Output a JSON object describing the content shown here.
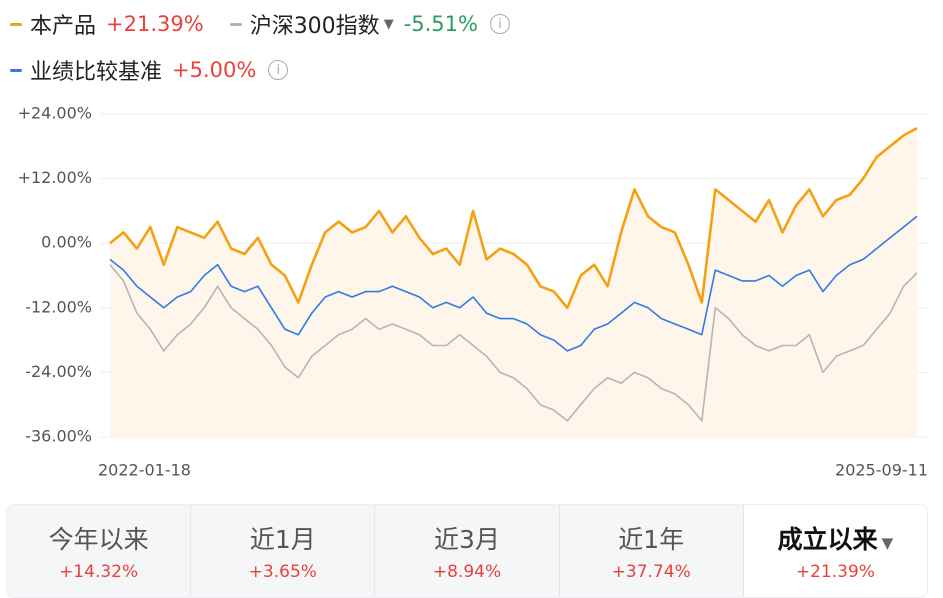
{
  "chart_data": {
    "type": "line",
    "categories": [
      "2022-01-18",
      null,
      null,
      null,
      null,
      null,
      null,
      null,
      null,
      null,
      null,
      null,
      null,
      null,
      null,
      null,
      null,
      null,
      null,
      null,
      null,
      null,
      null,
      null,
      null,
      null,
      null,
      null,
      null,
      null,
      null,
      null,
      null,
      null,
      null,
      null,
      null,
      null,
      null,
      null,
      null,
      null,
      null,
      null,
      null,
      null,
      null,
      null,
      null,
      null,
      null,
      null,
      null,
      null,
      null,
      null,
      null,
      null,
      null,
      null,
      "2025-09-11"
    ],
    "series": [
      {
        "name": "本产品",
        "color": "#f5a012",
        "legend_value": "+21.39%",
        "values": [
          0,
          2,
          -1,
          3,
          -4,
          3,
          2,
          1,
          4,
          -1,
          -2,
          1,
          -4,
          -6,
          -11,
          -4,
          2,
          4,
          2,
          3,
          6,
          2,
          5,
          1,
          -2,
          -1,
          -4,
          6,
          -3,
          -1,
          -2,
          -4,
          -8,
          -9,
          -12,
          -6,
          -4,
          -8,
          2,
          10,
          5,
          3,
          2,
          -4,
          -11,
          10,
          8,
          6,
          4,
          8,
          2,
          7,
          10,
          5,
          8,
          9,
          12,
          16,
          18,
          20,
          21.39
        ]
      },
      {
        "name": "沪深300指数",
        "color": "#b5b5b8",
        "legend_value": "-5.51%",
        "values": [
          -4,
          -7,
          -13,
          -16,
          -20,
          -17,
          -15,
          -12,
          -8,
          -12,
          -14,
          -16,
          -19,
          -23,
          -25,
          -21,
          -19,
          -17,
          -16,
          -14,
          -16,
          -15,
          -16,
          -17,
          -19,
          -19,
          -17,
          -19,
          -21,
          -24,
          -25,
          -27,
          -30,
          -31,
          -33,
          -30,
          -27,
          -25,
          -26,
          -24,
          -25,
          -27,
          -28,
          -30,
          -33,
          -12,
          -14,
          -17,
          -19,
          -20,
          -19,
          -19,
          -17,
          -24,
          -21,
          -20,
          -19,
          -16,
          -13,
          -8,
          -5.51
        ]
      },
      {
        "name": "业绩比较基准",
        "color": "#2f7be8",
        "legend_value": "+5.00%",
        "values": [
          -3,
          -5,
          -8,
          -10,
          -12,
          -10,
          -9,
          -6,
          -4,
          -8,
          -9,
          -8,
          -12,
          -16,
          -17,
          -13,
          -10,
          -9,
          -10,
          -9,
          -9,
          -8,
          -9,
          -10,
          -12,
          -11,
          -12,
          -10,
          -13,
          -14,
          -14,
          -15,
          -17,
          -18,
          -20,
          -19,
          -16,
          -15,
          -13,
          -11,
          -12,
          -14,
          -15,
          -16,
          -17,
          -5,
          -6,
          -7,
          -7,
          -6,
          -8,
          -6,
          -5,
          -9,
          -6,
          -4,
          -3,
          -1,
          1,
          3,
          5
        ]
      }
    ],
    "ylim": [
      -36,
      24
    ],
    "yticks": [
      {
        "value": -36,
        "label": "-36.00%"
      },
      {
        "value": -24,
        "label": "-24.00%"
      },
      {
        "value": -12,
        "label": "-12.00%"
      },
      {
        "value": 0,
        "label": "0.00%"
      },
      {
        "value": 12,
        "label": "+12.00%"
      },
      {
        "value": 24,
        "label": "+24.00%"
      }
    ],
    "grid": true
  },
  "tabs": [
    {
      "label": "今年以来",
      "value": "+14.32%"
    },
    {
      "label": "近1月",
      "value": "+3.65%"
    },
    {
      "label": "近3月",
      "value": "+8.94%"
    },
    {
      "label": "近1年",
      "value": "+37.74%"
    },
    {
      "label": "成立以来",
      "value": "+21.39%"
    }
  ],
  "selected_tab": 4
}
